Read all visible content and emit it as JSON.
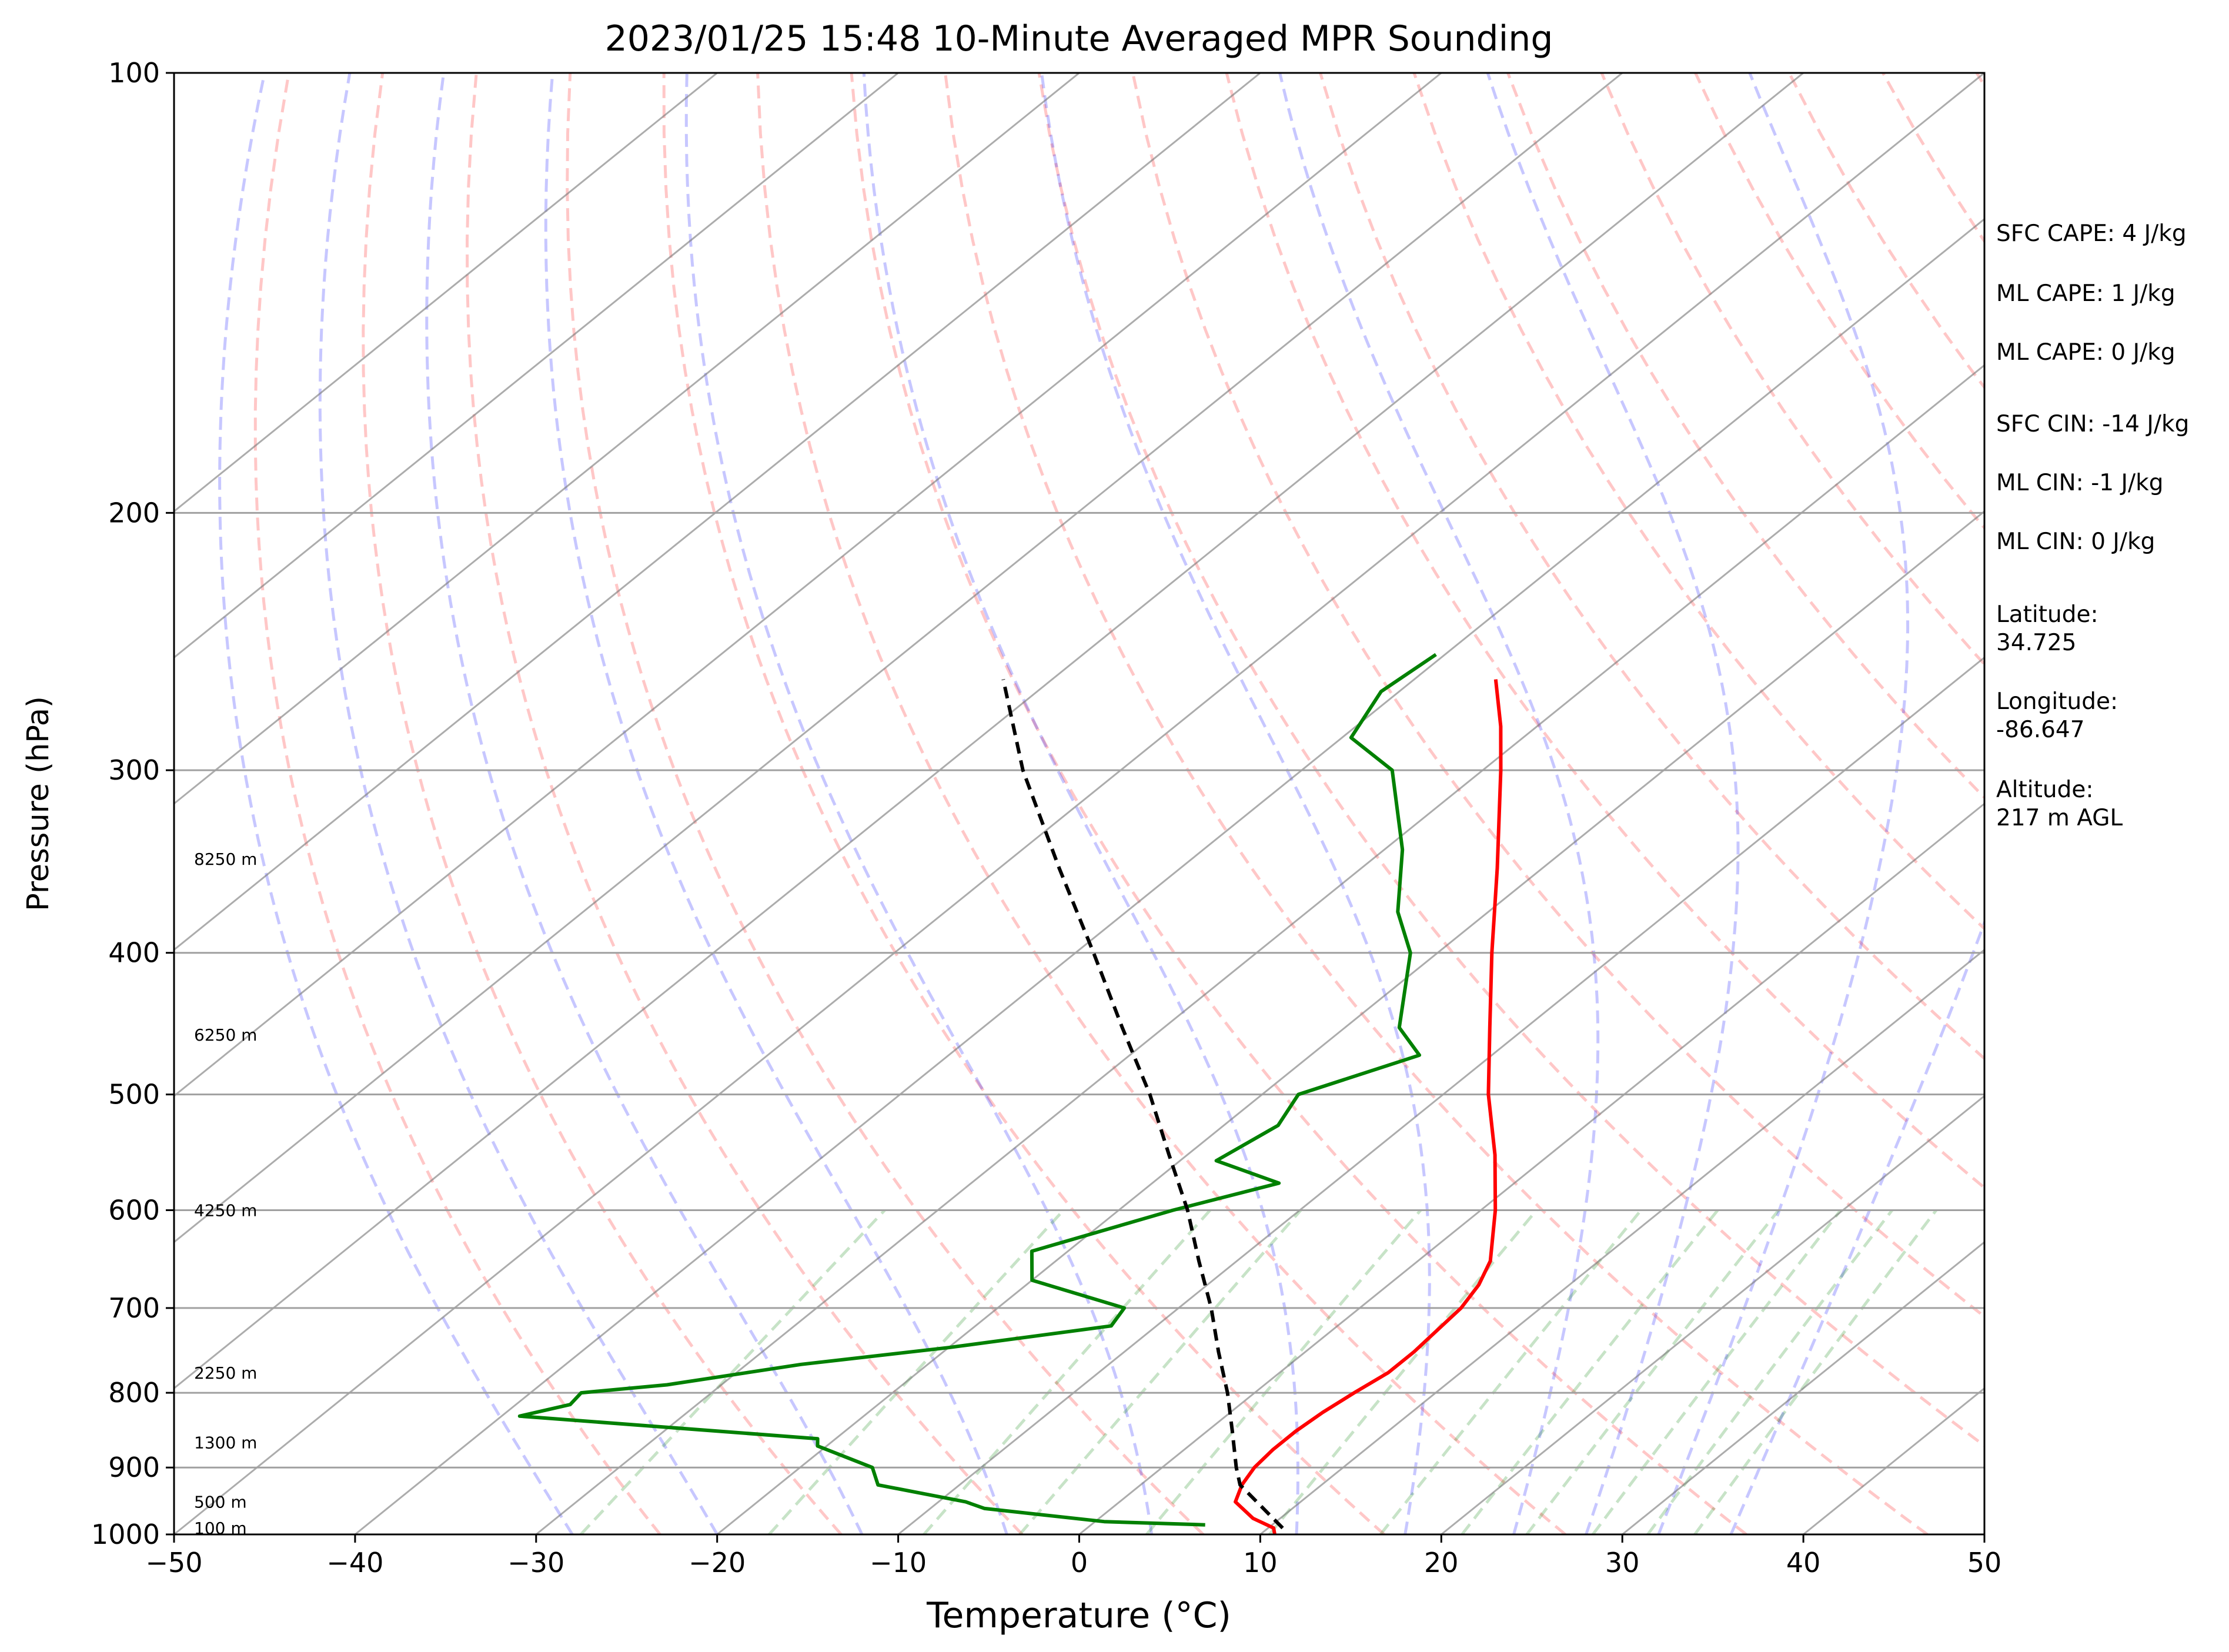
{
  "chart_data": {
    "type": "line",
    "title": "2023/01/25 15:48 10-Minute Averaged MPR Sounding",
    "xlabel": "Temperature (°C)",
    "ylabel": "Pressure (hPa)",
    "xlim": [
      -50,
      50
    ],
    "ylim": [
      1000,
      100
    ],
    "y_scale": "log",
    "x_ticks": [
      -50,
      -40,
      -30,
      -20,
      -10,
      0,
      10,
      20,
      30,
      40,
      50
    ],
    "x_tick_labels": [
      "−50",
      "−40",
      "−30",
      "−20",
      "−10",
      "0",
      "10",
      "20",
      "30",
      "40",
      "50"
    ],
    "y_ticks": [
      1000,
      900,
      800,
      700,
      600,
      500,
      400,
      300,
      200,
      100
    ],
    "y_tick_labels": [
      "1000",
      "900",
      "800",
      "700",
      "600",
      "500",
      "400",
      "300",
      "200",
      "100"
    ],
    "grid": true,
    "skew": true,
    "reference_lines": {
      "isotherms": "gray solid",
      "dry_adiabats": "red dashed",
      "moist_adiabats": "blue dashed",
      "mixing_ratio": "green dashed"
    },
    "series": [
      {
        "key": "temperature",
        "color": "#ff0000",
        "points": [
          [
            1000,
            10.8
          ],
          [
            990,
            10.3
          ],
          [
            975,
            8.5
          ],
          [
            950,
            6.4
          ],
          [
            925,
            5.6
          ],
          [
            900,
            5.1
          ],
          [
            875,
            4.9
          ],
          [
            850,
            4.9
          ],
          [
            825,
            5.1
          ],
          [
            800,
            5.5
          ],
          [
            775,
            6.0
          ],
          [
            750,
            6.0
          ],
          [
            700,
            5.6
          ],
          [
            675,
            5.0
          ],
          [
            650,
            4.0
          ],
          [
            600,
            0.8
          ],
          [
            550,
            -3.0
          ],
          [
            500,
            -7.5
          ],
          [
            450,
            -12.0
          ],
          [
            400,
            -17.0
          ],
          [
            350,
            -22.5
          ],
          [
            300,
            -29.0
          ],
          [
            280,
            -32.0
          ],
          [
            260,
            -35.5
          ]
        ]
      },
      {
        "key": "dewpoint",
        "color": "#008000",
        "points": [
          [
            985,
            6.3
          ],
          [
            980,
            0.5
          ],
          [
            960,
            -7.0
          ],
          [
            950,
            -8.5
          ],
          [
            925,
            -14.5
          ],
          [
            900,
            -16.0
          ],
          [
            870,
            -20.5
          ],
          [
            860,
            -21.0
          ],
          [
            830,
            -39.0
          ],
          [
            815,
            -37.0
          ],
          [
            800,
            -37.2
          ],
          [
            790,
            -33.0
          ],
          [
            765,
            -27.0
          ],
          [
            745,
            -20.0
          ],
          [
            720,
            -12.5
          ],
          [
            700,
            -13.0
          ],
          [
            670,
            -20.0
          ],
          [
            640,
            -22.0
          ],
          [
            600,
            -17.0
          ],
          [
            575,
            -13.0
          ],
          [
            555,
            -18.0
          ],
          [
            525,
            -17.0
          ],
          [
            500,
            -18.0
          ],
          [
            470,
            -14.0
          ],
          [
            450,
            -17.0
          ],
          [
            400,
            -21.5
          ],
          [
            375,
            -25.0
          ],
          [
            340,
            -29.0
          ],
          [
            300,
            -35.0
          ],
          [
            285,
            -39.5
          ],
          [
            265,
            -41.0
          ],
          [
            250,
            -40.5
          ]
        ]
      },
      {
        "key": "parcel",
        "color": "#000000",
        "dash": "dashed",
        "points": [
          [
            990,
            10.8
          ],
          [
            925,
            5.5
          ],
          [
            900,
            4.1
          ],
          [
            850,
            1.4
          ],
          [
            800,
            -1.5
          ],
          [
            750,
            -4.8
          ],
          [
            700,
            -8.2
          ],
          [
            650,
            -12.1
          ],
          [
            600,
            -16.2
          ],
          [
            550,
            -21.0
          ],
          [
            500,
            -26.2
          ],
          [
            450,
            -32.3
          ],
          [
            400,
            -39.0
          ],
          [
            350,
            -46.7
          ],
          [
            300,
            -55.4
          ],
          [
            260,
            -62.7
          ]
        ]
      }
    ],
    "height_labels": [
      {
        "label": "100 m",
        "p": 990
      },
      {
        "label": "500 m",
        "p": 950
      },
      {
        "label": "1300 m",
        "p": 865
      },
      {
        "label": "2250 m",
        "p": 775
      },
      {
        "label": "4250 m",
        "p": 600
      },
      {
        "label": "6250 m",
        "p": 455
      },
      {
        "label": "8250 m",
        "p": 345
      }
    ]
  },
  "stats": [
    {
      "text": "SFC CAPE: 4 J/kg"
    },
    {
      "text": "ML CAPE: 1 J/kg"
    },
    {
      "text": "ML CAPE: 0 J/kg"
    },
    {
      "text": "SFC CIN: -14 J/kg"
    },
    {
      "text": "ML CIN: -1 J/kg"
    },
    {
      "text": "ML CIN: 0 J/kg"
    },
    {
      "label": "Latitude:",
      "value": "34.725"
    },
    {
      "label": "Longitude:",
      "value": "-86.647"
    },
    {
      "label": "Altitude:",
      "value": "217 m AGL"
    }
  ]
}
